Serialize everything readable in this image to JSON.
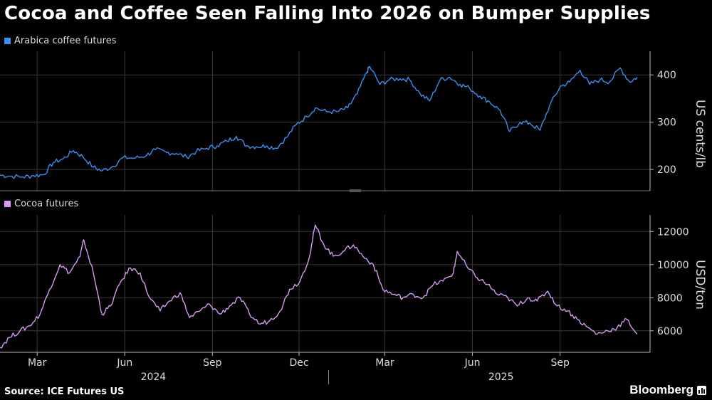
{
  "title": "Cocoa and Coffee Seen Falling Into 2026 on Bumper Supplies",
  "source": "Source: ICE Futures US",
  "brand": "Bloomberg",
  "colors": {
    "coffee": "#3a8ff2",
    "cocoa": "#d59cf2",
    "grid": "#3a3a3a",
    "axis": "#bbbbbb"
  },
  "chart_data": [
    {
      "type": "line",
      "series_name": "Arabica coffee futures",
      "ylabel": "US cents/lb",
      "ylim": [
        155,
        450
      ],
      "yticks": [
        200,
        300,
        400
      ],
      "x_start": "2024-01-22",
      "x_end": "2025-11-21",
      "points": [
        [
          "2024-01-22",
          188
        ],
        [
          "2024-02-01",
          186
        ],
        [
          "2024-02-15",
          184
        ],
        [
          "2024-02-26",
          187
        ],
        [
          "2024-03-08",
          189
        ],
        [
          "2024-03-18",
          215
        ],
        [
          "2024-03-28",
          222
        ],
        [
          "2024-04-08",
          240
        ],
        [
          "2024-04-18",
          227
        ],
        [
          "2024-04-29",
          205
        ],
        [
          "2024-05-08",
          197
        ],
        [
          "2024-05-20",
          207
        ],
        [
          "2024-05-30",
          225
        ],
        [
          "2024-06-12",
          224
        ],
        [
          "2024-06-24",
          230
        ],
        [
          "2024-07-03",
          242
        ],
        [
          "2024-07-15",
          236
        ],
        [
          "2024-07-25",
          234
        ],
        [
          "2024-08-05",
          226
        ],
        [
          "2024-08-15",
          238
        ],
        [
          "2024-08-26",
          245
        ],
        [
          "2024-09-06",
          250
        ],
        [
          "2024-09-16",
          260
        ],
        [
          "2024-09-26",
          270
        ],
        [
          "2024-10-07",
          250
        ],
        [
          "2024-10-17",
          248
        ],
        [
          "2024-10-28",
          250
        ],
        [
          "2024-11-07",
          245
        ],
        [
          "2024-11-18",
          268
        ],
        [
          "2024-11-28",
          295
        ],
        [
          "2024-12-09",
          312
        ],
        [
          "2024-12-18",
          330
        ],
        [
          "2024-12-30",
          322
        ],
        [
          "2025-01-10",
          322
        ],
        [
          "2025-01-21",
          330
        ],
        [
          "2025-01-31",
          360
        ],
        [
          "2025-02-10",
          405
        ],
        [
          "2025-02-13",
          418
        ],
        [
          "2025-02-24",
          380
        ],
        [
          "2025-03-06",
          390
        ],
        [
          "2025-03-17",
          392
        ],
        [
          "2025-03-27",
          390
        ],
        [
          "2025-04-07",
          360
        ],
        [
          "2025-04-17",
          345
        ],
        [
          "2025-04-28",
          390
        ],
        [
          "2025-05-08",
          395
        ],
        [
          "2025-05-19",
          380
        ],
        [
          "2025-05-29",
          372
        ],
        [
          "2025-06-09",
          355
        ],
        [
          "2025-06-19",
          343
        ],
        [
          "2025-06-30",
          325
        ],
        [
          "2025-07-10",
          280
        ],
        [
          "2025-07-21",
          300
        ],
        [
          "2025-07-31",
          298
        ],
        [
          "2025-08-11",
          283
        ],
        [
          "2025-08-21",
          335
        ],
        [
          "2025-09-01",
          375
        ],
        [
          "2025-09-11",
          385
        ],
        [
          "2025-09-22",
          410
        ],
        [
          "2025-10-02",
          380
        ],
        [
          "2025-10-13",
          390
        ],
        [
          "2025-10-23",
          385
        ],
        [
          "2025-11-03",
          415
        ],
        [
          "2025-11-13",
          385
        ],
        [
          "2025-11-21",
          395
        ]
      ]
    },
    {
      "type": "line",
      "series_name": "Cocoa futures",
      "ylabel": "USD/ton",
      "ylim": [
        4700,
        13000
      ],
      "yticks": [
        6000,
        8000,
        10000,
        12000
      ],
      "x_start": "2024-01-22",
      "x_end": "2025-11-21",
      "points": [
        [
          "2024-01-22",
          5000
        ],
        [
          "2024-02-01",
          5600
        ],
        [
          "2024-02-12",
          6000
        ],
        [
          "2024-02-22",
          6300
        ],
        [
          "2024-03-04",
          7000
        ],
        [
          "2024-03-14",
          8500
        ],
        [
          "2024-03-25",
          10000
        ],
        [
          "2024-04-04",
          9500
        ],
        [
          "2024-04-15",
          10500
        ],
        [
          "2024-04-19",
          11500
        ],
        [
          "2024-04-29",
          9500
        ],
        [
          "2024-05-08",
          7000
        ],
        [
          "2024-05-17",
          7500
        ],
        [
          "2024-05-28",
          9000
        ],
        [
          "2024-06-07",
          9800
        ],
        [
          "2024-06-17",
          9500
        ],
        [
          "2024-06-27",
          8000
        ],
        [
          "2024-07-08",
          7200
        ],
        [
          "2024-07-18",
          7800
        ],
        [
          "2024-07-29",
          8300
        ],
        [
          "2024-08-08",
          6800
        ],
        [
          "2024-08-19",
          7200
        ],
        [
          "2024-08-29",
          7600
        ],
        [
          "2024-09-09",
          7000
        ],
        [
          "2024-09-19",
          7500
        ],
        [
          "2024-09-30",
          8000
        ],
        [
          "2024-10-10",
          7000
        ],
        [
          "2024-10-21",
          6400
        ],
        [
          "2024-10-31",
          6600
        ],
        [
          "2024-11-11",
          7200
        ],
        [
          "2024-11-21",
          8500
        ],
        [
          "2024-12-02",
          9000
        ],
        [
          "2024-12-12",
          10500
        ],
        [
          "2024-12-18",
          12400
        ],
        [
          "2024-12-27",
          11200
        ],
        [
          "2025-01-06",
          10500
        ],
        [
          "2025-01-16",
          10800
        ],
        [
          "2025-01-27",
          11200
        ],
        [
          "2025-02-06",
          10500
        ],
        [
          "2025-02-17",
          10000
        ],
        [
          "2025-02-27",
          8500
        ],
        [
          "2025-03-10",
          8200
        ],
        [
          "2025-03-20",
          8000
        ],
        [
          "2025-03-31",
          8200
        ],
        [
          "2025-04-10",
          8000
        ],
        [
          "2025-04-21",
          8800
        ],
        [
          "2025-05-01",
          9000
        ],
        [
          "2025-05-12",
          9500
        ],
        [
          "2025-05-16",
          10800
        ],
        [
          "2025-05-27",
          9800
        ],
        [
          "2025-06-06",
          9200
        ],
        [
          "2025-06-17",
          8800
        ],
        [
          "2025-06-27",
          8200
        ],
        [
          "2025-07-08",
          8000
        ],
        [
          "2025-07-18",
          7500
        ],
        [
          "2025-07-29",
          8000
        ],
        [
          "2025-08-08",
          7800
        ],
        [
          "2025-08-19",
          8400
        ],
        [
          "2025-08-29",
          7500
        ],
        [
          "2025-09-09",
          7200
        ],
        [
          "2025-09-19",
          6700
        ],
        [
          "2025-09-30",
          6200
        ],
        [
          "2025-10-10",
          5800
        ],
        [
          "2025-10-21",
          6000
        ],
        [
          "2025-10-31",
          6200
        ],
        [
          "2025-11-10",
          6700
        ],
        [
          "2025-11-21",
          5800
        ]
      ]
    }
  ],
  "x_axis": {
    "month_ticks": [
      {
        "label": "Mar",
        "date": "2024-03-01"
      },
      {
        "label": "Jun",
        "date": "2024-06-01"
      },
      {
        "label": "Sep",
        "date": "2024-09-01"
      },
      {
        "label": "Dec",
        "date": "2024-12-01"
      },
      {
        "label": "Mar",
        "date": "2025-03-01"
      },
      {
        "label": "Jun",
        "date": "2025-06-01"
      },
      {
        "label": "Sep",
        "date": "2025-09-01"
      }
    ],
    "years": [
      {
        "label": "2024",
        "date": "2024-07-01"
      },
      {
        "label": "2025",
        "date": "2025-07-01"
      }
    ],
    "year_divider": "2025-01-01"
  }
}
